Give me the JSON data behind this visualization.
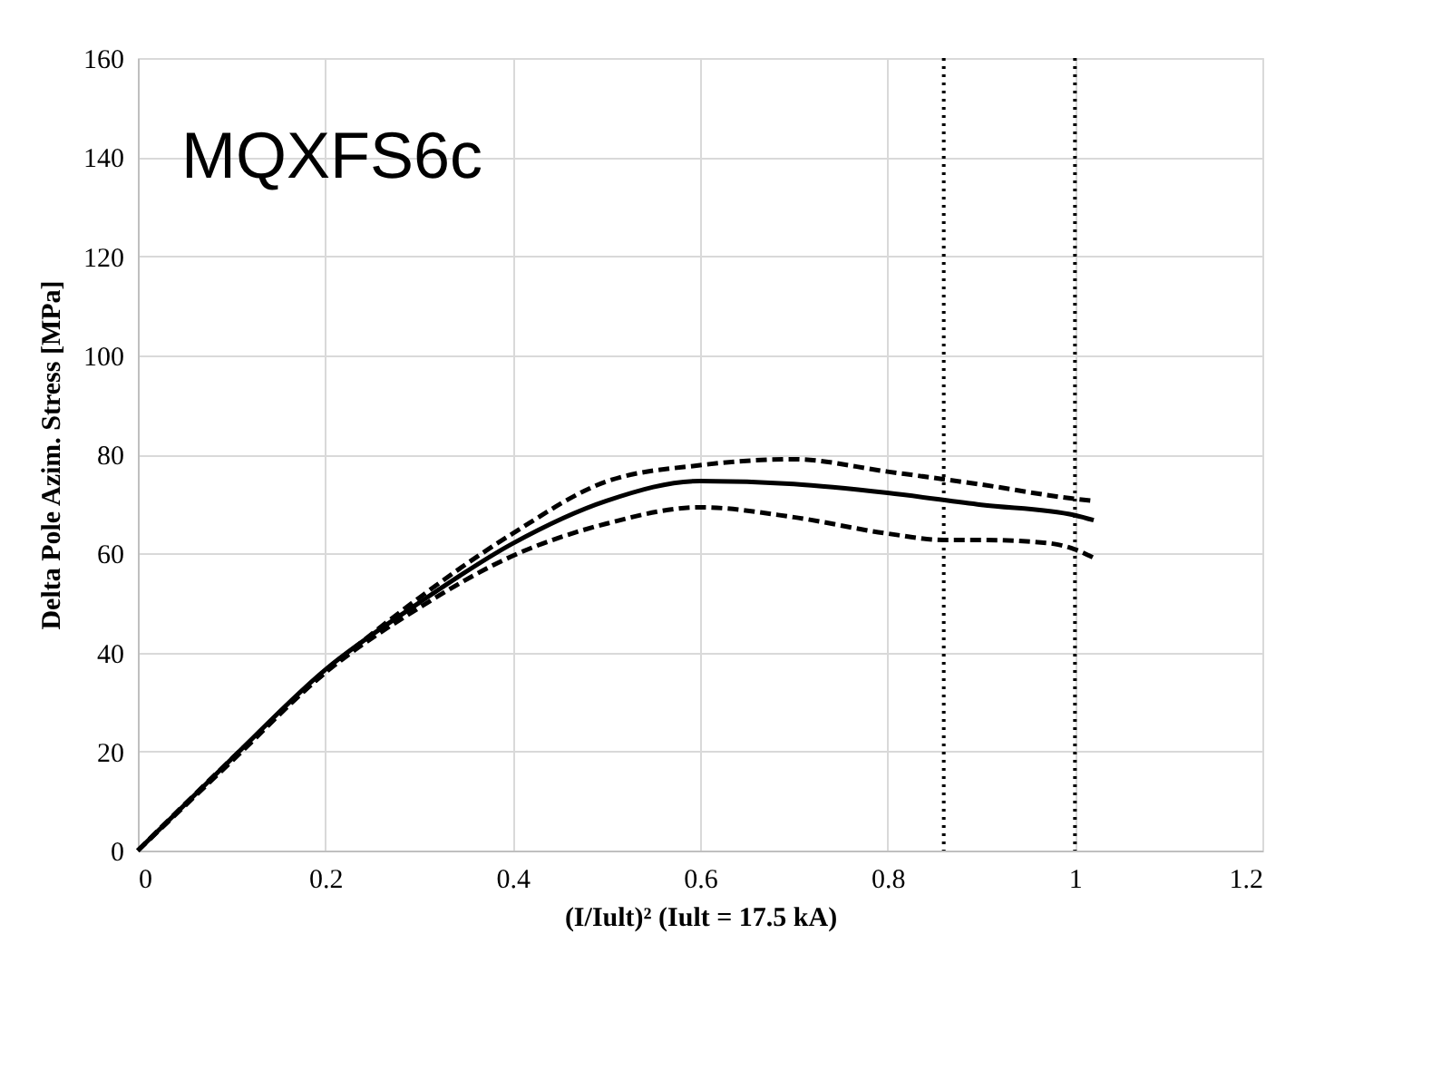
{
  "chart_data": {
    "type": "line",
    "xlabel": "(I/Iult)² (Iult = 17.5 kA)",
    "ylabel": "Delta Pole Azim. Stress [MPa]",
    "annotations": [
      "MQXFS6c"
    ],
    "xlim": [
      0,
      1.2
    ],
    "xticks": [
      0,
      0.2,
      0.4,
      0.6,
      0.8,
      1,
      1.2
    ],
    "ylim": [
      0,
      160
    ],
    "yticks": [
      0,
      20,
      40,
      60,
      80,
      100,
      120,
      140,
      160
    ],
    "grid": true,
    "marker": "none",
    "series": [
      {
        "color": "#000000",
        "line_style": "solid",
        "x": [
          0,
          0.1,
          0.2,
          0.3,
          0.4,
          0.5,
          0.6,
          0.7,
          0.8,
          0.9,
          1.0,
          1.02
        ],
        "values": [
          0,
          18.5,
          36.5,
          50,
          62,
          70.6,
          74.6,
          74,
          72.2,
          69.8,
          67.7,
          66.7
        ]
      },
      {
        "color": "#000000",
        "line_style": "dashed",
        "x": [
          0,
          0.1,
          0.2,
          0.3,
          0.4,
          0.5,
          0.6,
          0.7,
          0.8,
          0.9,
          1.0,
          1.02
        ],
        "values": [
          0,
          18.5,
          36,
          51,
          64,
          74.5,
          77.8,
          79,
          76.5,
          73.9,
          71,
          70.6
        ]
      },
      {
        "color": "#000000",
        "line_style": "dashed",
        "x": [
          0,
          0.1,
          0.2,
          0.3,
          0.4,
          0.5,
          0.6,
          0.7,
          0.8,
          0.86,
          0.9,
          0.97,
          1.0,
          1.02
        ],
        "values": [
          0,
          18,
          35.9,
          49,
          59.5,
          66,
          69.3,
          67.3,
          64,
          62.7,
          62.7,
          62.1,
          60.8,
          59.1
        ]
      }
    ],
    "ref_lines": [
      {
        "axis": "x",
        "value": 0.86,
        "color": "#000000",
        "line_style": "dotted"
      },
      {
        "axis": "x",
        "value": 1.0,
        "color": "#000000",
        "line_style": "dotted"
      }
    ]
  }
}
